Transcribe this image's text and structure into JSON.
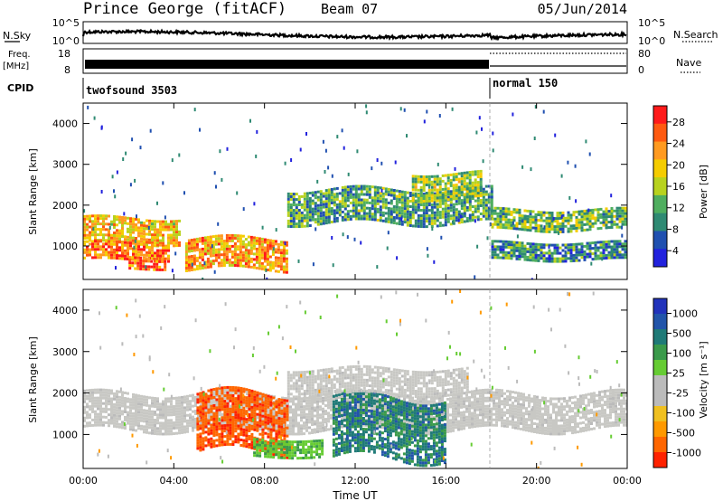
{
  "header": {
    "title": "Prince George (fitACF)",
    "beam": "Beam 07",
    "date": "05/Jun/2014"
  },
  "nsky_panel": {
    "left_label": "N.Sky",
    "right_label": "N.Search",
    "left_ticks": [
      "10^5",
      "10^0"
    ],
    "right_ticks": [
      "10^5",
      "10^0"
    ]
  },
  "freq_panel": {
    "left_label_1": "Freq.",
    "left_label_2": "[MHz]",
    "right_label": "Nave",
    "left_ticks": [
      "18",
      "8"
    ],
    "right_ticks": [
      "80",
      "0"
    ]
  },
  "cpid_panel": {
    "label": "CPID",
    "modes": [
      {
        "name": "twofsound 3503",
        "start_hour": 0
      },
      {
        "name": "normal 150",
        "start_hour": 18
      }
    ]
  },
  "time_axis": {
    "label": "Time UT",
    "ticks": [
      "00:00",
      "04:00",
      "08:00",
      "12:00",
      "16:00",
      "20:00",
      "00:00"
    ]
  },
  "power_panel": {
    "ylabel": "Slant Range [km]",
    "yticks": [
      "4000",
      "3000",
      "2000",
      "1000"
    ],
    "colorbar_label": "Power [dB]",
    "colorbar_ticks": [
      "28",
      "24",
      "20",
      "16",
      "12",
      "8",
      "4"
    ],
    "colors": [
      "#ff1a1a",
      "#ff5a10",
      "#ff9a20",
      "#f5cc00",
      "#b8d21e",
      "#4fae5f",
      "#2f8a73",
      "#2050b0",
      "#2222dd"
    ]
  },
  "velocity_panel": {
    "ylabel": "Slant Range [km]",
    "yticks": [
      "4000",
      "3000",
      "2000",
      "1000"
    ],
    "colorbar_label": "Velocity [m s⁻¹]",
    "colorbar_ticks": [
      "1000",
      "500",
      "100",
      "25",
      "-25",
      "-100",
      "-500",
      "-1000"
    ],
    "colors": [
      "#2233bb",
      "#2255aa",
      "#1f7a77",
      "#3a9a4a",
      "#66cc33",
      "#bbbbbb",
      "#bbbbbb",
      "#f0c020",
      "#ff9900",
      "#ff6600",
      "#ff2200"
    ]
  },
  "chart_data": [
    {
      "type": "heatmap",
      "title": "Power",
      "xlabel": "Time UT",
      "ylabel": "Slant Range [km]",
      "xlim": [
        0,
        24
      ],
      "ylim": [
        180,
        4500
      ],
      "colorbar_range": [
        0,
        30
      ],
      "colorbar_label": "Power [dB]",
      "bands": [
        {
          "from_hour": 0,
          "to_hour": 4.2,
          "range_km": [
            1100,
            1700
          ],
          "power_db": 20
        },
        {
          "from_hour": 0,
          "to_hour": 3.8,
          "range_km": [
            700,
            1100
          ],
          "power_db": 24
        },
        {
          "from_hour": 2,
          "to_hour": 3.6,
          "range_km": [
            450,
            750
          ],
          "power_db": 26
        },
        {
          "from_hour": 4.5,
          "to_hour": 9,
          "range_km": [
            450,
            1200
          ],
          "power_db": 22
        },
        {
          "from_hour": 9,
          "to_hour": 18,
          "range_km": [
            1600,
            2400
          ],
          "power_db": 10
        },
        {
          "from_hour": 14.5,
          "to_hour": 17.5,
          "range_km": [
            2200,
            2800
          ],
          "power_db": 14
        },
        {
          "from_hour": 18,
          "to_hour": 24,
          "range_km": [
            1400,
            1900
          ],
          "power_db": 12
        },
        {
          "from_hour": 18,
          "to_hour": 24,
          "range_km": [
            700,
            1100
          ],
          "power_db": 8
        }
      ]
    },
    {
      "type": "heatmap",
      "title": "Velocity",
      "xlabel": "Time UT",
      "ylabel": "Slant Range [km]",
      "xlim": [
        0,
        24
      ],
      "ylim": [
        180,
        4500
      ],
      "colorbar_ticks": [
        1000,
        500,
        100,
        25,
        -25,
        -100,
        -500,
        -1000
      ],
      "colorbar_label": "Velocity [m s⁻¹]",
      "bands": [
        {
          "from_hour": 0,
          "to_hour": 24,
          "range_km": [
            1100,
            2000
          ],
          "velocity": 0
        },
        {
          "from_hour": 5,
          "to_hour": 9,
          "range_km": [
            600,
            2000
          ],
          "velocity": -500
        },
        {
          "from_hour": 7.5,
          "to_hour": 10.5,
          "range_km": [
            500,
            900
          ],
          "velocity": 100
        },
        {
          "from_hour": 11,
          "to_hour": 16,
          "range_km": [
            400,
            1900
          ],
          "velocity": 300
        },
        {
          "from_hour": 9,
          "to_hour": 17,
          "range_km": [
            2000,
            2600
          ],
          "velocity": 0
        }
      ]
    }
  ]
}
